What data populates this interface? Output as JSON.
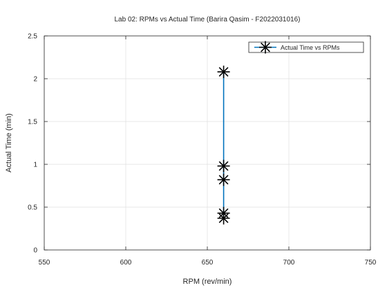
{
  "chart_data": {
    "type": "line",
    "title": "Lab 02: RPMs vs Actual Time (Barira Qasim - F2022031016)",
    "xlabel": "RPM (rev/min)",
    "ylabel": "Actual Time (min)",
    "xlim": [
      550,
      750
    ],
    "ylim": [
      0,
      2.5
    ],
    "xticks": [
      550,
      600,
      650,
      700,
      750
    ],
    "yticks": [
      0,
      0.5,
      1,
      1.5,
      2,
      2.5
    ],
    "xtick_labels": [
      "550",
      "600",
      "650",
      "700",
      "750"
    ],
    "ytick_labels": [
      "0",
      "0.5",
      "1",
      "1.5",
      "2",
      "2.5"
    ],
    "grid": true,
    "legend_position": "top-right",
    "series": [
      {
        "name": "Actual Time vs RPMs",
        "color": "#0072bd",
        "marker": "asterisk",
        "marker_color": "#000000",
        "x": [
          660,
          660,
          660,
          660,
          660
        ],
        "y": [
          2.08,
          0.98,
          0.82,
          0.43,
          0.37
        ]
      }
    ]
  }
}
